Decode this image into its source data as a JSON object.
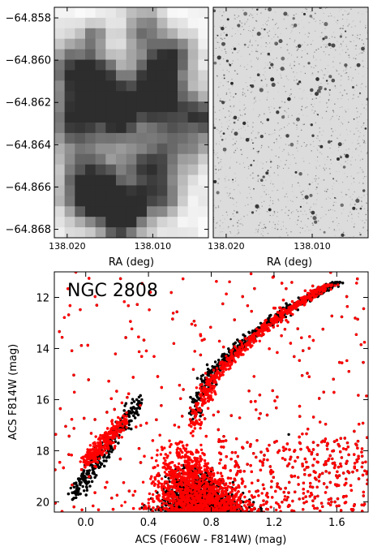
{
  "chart_data": [
    {
      "type": "image",
      "xlabel": "RA (deg)",
      "ylabel": "",
      "x_ticks": [
        "138.020",
        "138.010"
      ],
      "y_ticks": [
        "−64.858",
        "−64.860",
        "−64.862",
        "−64.864",
        "−64.866",
        "−64.868"
      ],
      "xlim": [
        138.0215,
        138.0035
      ],
      "ylim": [
        -64.8684,
        -64.8575
      ],
      "grid": false,
      "description": "low-resolution pixelated grayscale image of field"
    },
    {
      "type": "image",
      "xlabel": "RA (deg)",
      "x_ticks": [
        "138.020",
        "138.010"
      ],
      "xlim": [
        138.0215,
        138.0035
      ],
      "ylim": [
        -64.8684,
        -64.8575
      ],
      "grid": false,
      "description": "high-resolution grayscale star field image"
    },
    {
      "type": "scatter",
      "annotation": "NGC 2808",
      "xlabel": "ACS (F606W - F814W) (mag)",
      "ylabel": "ACS F814W (mag)",
      "x_ticks": [
        "0.0",
        "0.4",
        "0.8",
        "1.2",
        "1.6"
      ],
      "y_ticks": [
        "12",
        "14",
        "16",
        "18",
        "20"
      ],
      "xlim": [
        -0.2,
        1.8
      ],
      "ylim": [
        20.4,
        11.0
      ],
      "y_inverted": true,
      "grid": false,
      "colors": {
        "all_stars": "#000000",
        "matched_stars": "#ff0000"
      },
      "series": [
        {
          "color": "#000000",
          "features": [
            {
              "feature": "main sequence",
              "x_range": [
                0.5,
                0.95
              ],
              "y_range": [
                18.5,
                20.4
              ]
            },
            {
              "feature": "red giant branch",
              "x_start": 0.68,
              "y_start": 17.0,
              "x_end": 1.6,
              "y_end": 11.4
            },
            {
              "feature": "blue horizontal branch",
              "x_start": -0.08,
              "y_start": 19.8,
              "x_end": 0.35,
              "y_end": 16.0
            },
            {
              "feature": "field stars",
              "x_range": [
                -0.2,
                1.8
              ],
              "y_range": [
                11.0,
                20.4
              ]
            }
          ]
        },
        {
          "color": "#ff0000",
          "features": [
            {
              "feature": "main sequence",
              "x_range": [
                0.4,
                1.0
              ],
              "y_range": [
                17.5,
                20.4
              ]
            },
            {
              "feature": "red giant branch",
              "x_start": 0.68,
              "y_start": 17.5,
              "x_end": 1.55,
              "y_end": 11.5
            },
            {
              "feature": "blue horizontal branch",
              "x_start": 0.0,
              "y_start": 18.5,
              "x_end": 0.25,
              "y_end": 16.8
            },
            {
              "feature": "field stars",
              "x_range": [
                -0.2,
                1.8
              ],
              "y_range": [
                11.0,
                20.4
              ]
            }
          ]
        }
      ]
    }
  ]
}
